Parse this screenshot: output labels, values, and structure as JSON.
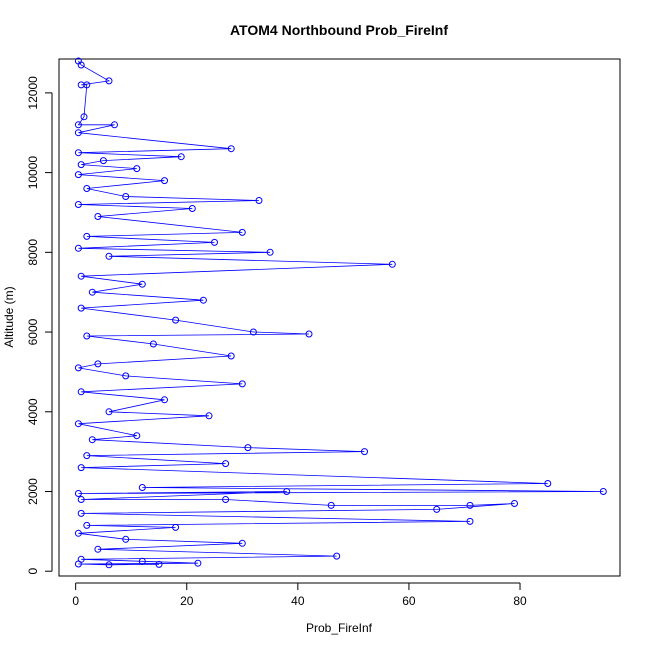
{
  "chart_data": {
    "type": "scatter",
    "title": "ATOM4 Northbound Prob_FireInf",
    "xlabel": "Prob_FireInf",
    "ylabel": "Altitude (m)",
    "xlim": [
      -3,
      98
    ],
    "ylim": [
      -120,
      12850
    ],
    "xticks": [
      0,
      20,
      40,
      60,
      80
    ],
    "yticks": [
      0,
      2000,
      4000,
      6000,
      8000,
      10000,
      12000
    ],
    "grid": false,
    "legend": "none",
    "line_color": "#0000ff",
    "marker": "open-circle",
    "connected_by_lines": true,
    "series": [
      {
        "points": [
          [
            0.5,
            12800
          ],
          [
            1,
            12700
          ],
          [
            6,
            12300
          ],
          [
            1,
            12200
          ],
          [
            2,
            12200
          ],
          [
            1.5,
            11400
          ],
          [
            0.5,
            11200
          ],
          [
            7,
            11200
          ],
          [
            0.5,
            11000
          ],
          [
            28,
            10600
          ],
          [
            0.5,
            10500
          ],
          [
            19,
            10400
          ],
          [
            5,
            10300
          ],
          [
            1,
            10200
          ],
          [
            11,
            10100
          ],
          [
            0.5,
            9950
          ],
          [
            16,
            9800
          ],
          [
            2,
            9600
          ],
          [
            9,
            9400
          ],
          [
            33,
            9300
          ],
          [
            0.5,
            9200
          ],
          [
            21,
            9100
          ],
          [
            4,
            8900
          ],
          [
            30,
            8500
          ],
          [
            2,
            8400
          ],
          [
            25,
            8250
          ],
          [
            0.5,
            8100
          ],
          [
            35,
            8000
          ],
          [
            6,
            7900
          ],
          [
            57,
            7700
          ],
          [
            1,
            7400
          ],
          [
            12,
            7200
          ],
          [
            3,
            7000
          ],
          [
            23,
            6800
          ],
          [
            1,
            6600
          ],
          [
            18,
            6300
          ],
          [
            32,
            6000
          ],
          [
            42,
            5950
          ],
          [
            2,
            5900
          ],
          [
            14,
            5700
          ],
          [
            28,
            5400
          ],
          [
            4,
            5200
          ],
          [
            0.5,
            5100
          ],
          [
            9,
            4900
          ],
          [
            30,
            4700
          ],
          [
            1,
            4500
          ],
          [
            16,
            4300
          ],
          [
            6,
            4000
          ],
          [
            24,
            3900
          ],
          [
            0.5,
            3700
          ],
          [
            11,
            3400
          ],
          [
            3,
            3300
          ],
          [
            31,
            3100
          ],
          [
            52,
            3000
          ],
          [
            2,
            2900
          ],
          [
            27,
            2700
          ],
          [
            1,
            2600
          ],
          [
            85,
            2200
          ],
          [
            12,
            2100
          ],
          [
            95,
            2000
          ],
          [
            0.5,
            1950
          ],
          [
            38,
            2000
          ],
          [
            1,
            1800
          ],
          [
            27,
            1800
          ],
          [
            46,
            1650
          ],
          [
            71,
            1650
          ],
          [
            79,
            1700
          ],
          [
            65,
            1550
          ],
          [
            1,
            1450
          ],
          [
            71,
            1250
          ],
          [
            2,
            1150
          ],
          [
            18,
            1100
          ],
          [
            0.5,
            950
          ],
          [
            9,
            800
          ],
          [
            30,
            700
          ],
          [
            4,
            550
          ],
          [
            47,
            380
          ],
          [
            1,
            300
          ],
          [
            12,
            250
          ],
          [
            22,
            200
          ],
          [
            0.5,
            180
          ],
          [
            6,
            160
          ],
          [
            15,
            170
          ]
        ]
      }
    ]
  }
}
